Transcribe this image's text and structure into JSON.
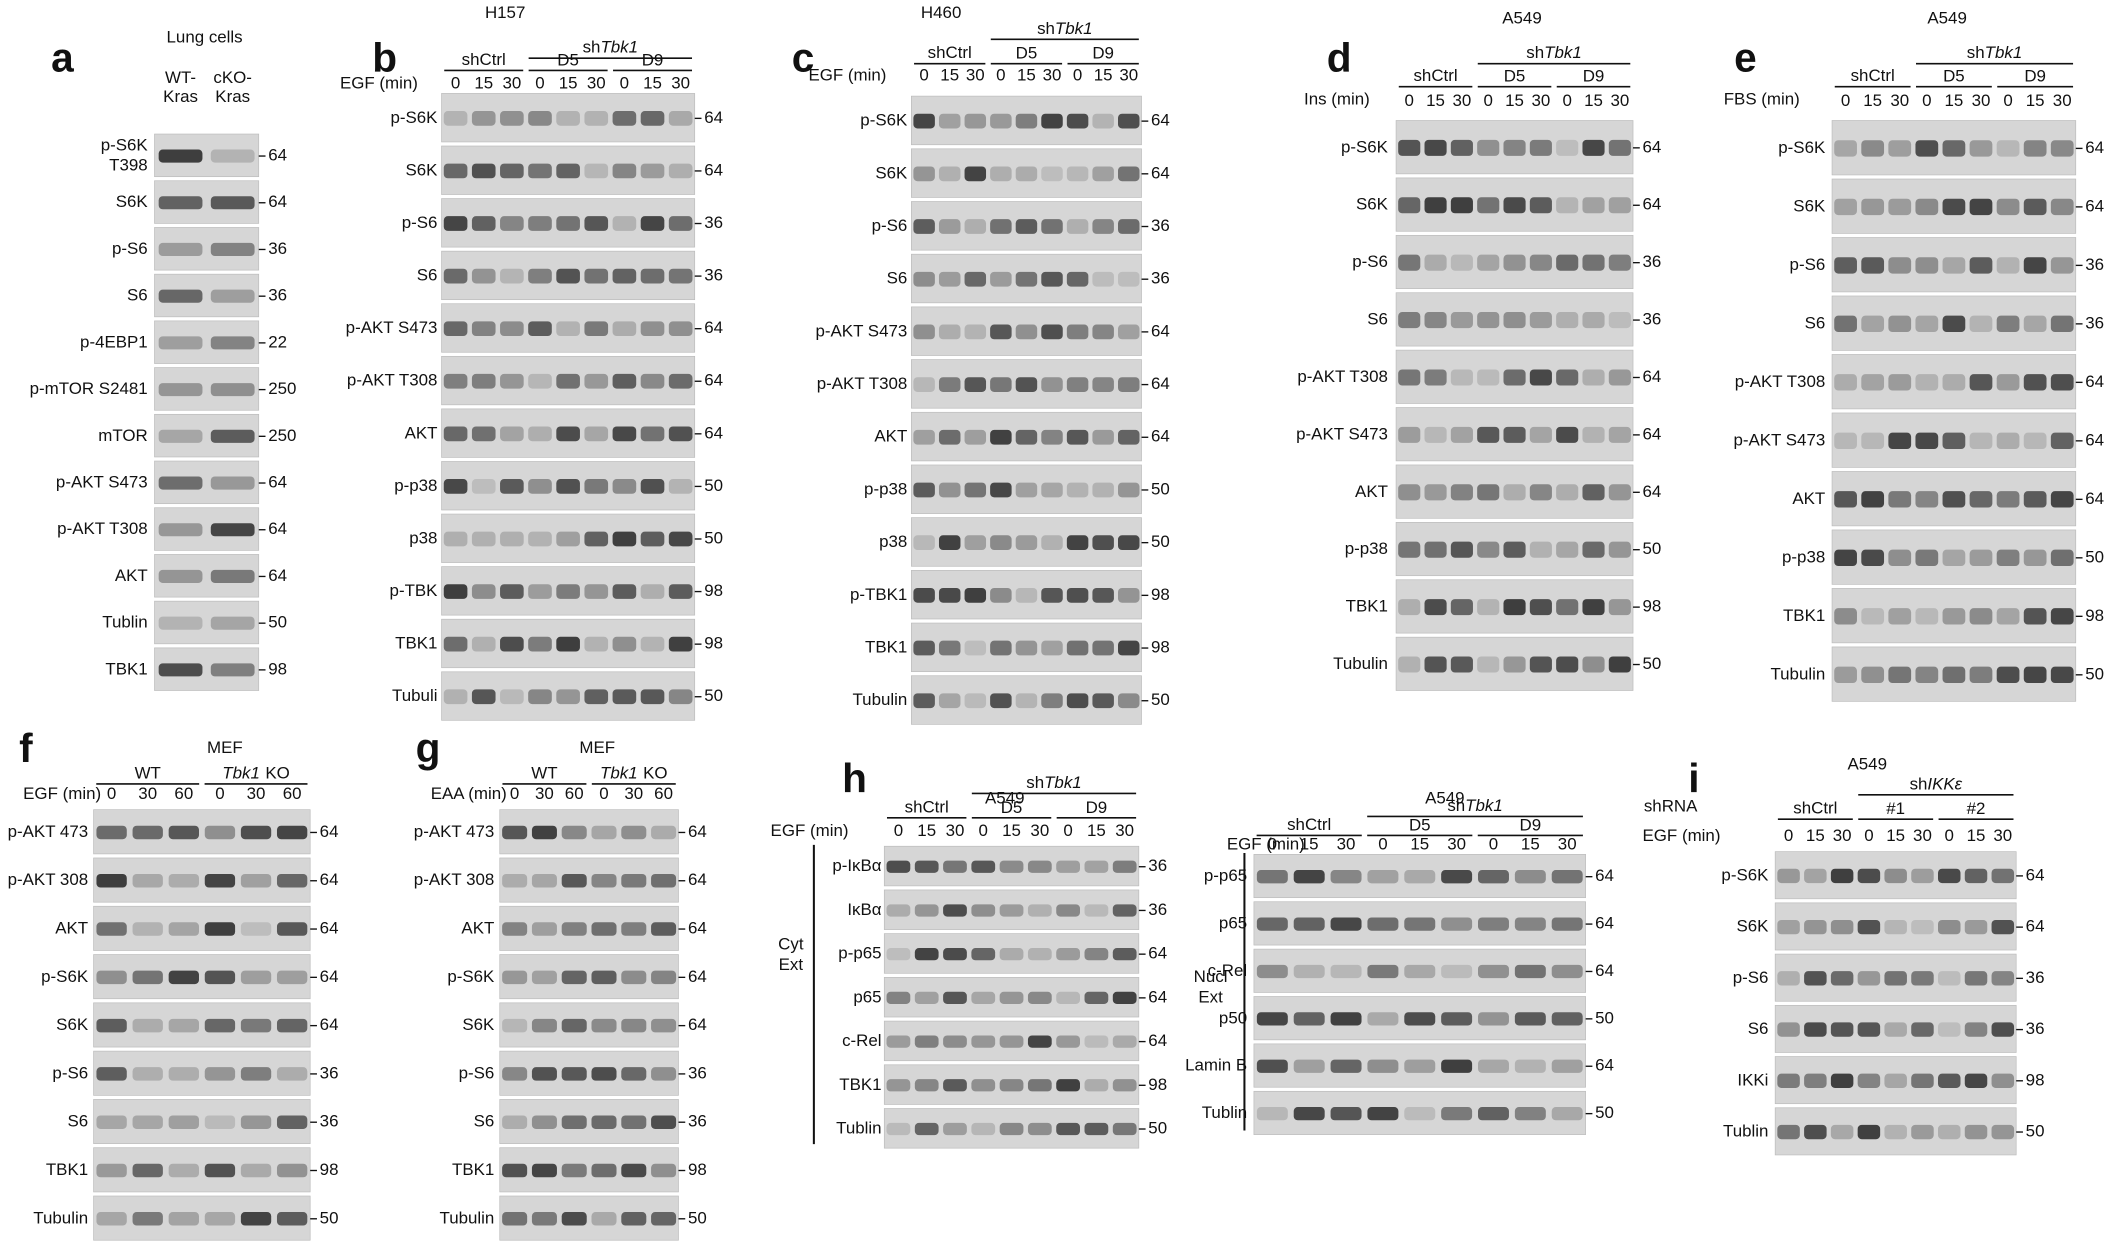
{
  "panels": [
    {
      "letter": "a",
      "title": "Lung cells",
      "columns": [
        [
          "WT-",
          "Kras"
        ],
        [
          "cKO-",
          "Kras"
        ]
      ],
      "blots": [
        {
          "label": [
            "p-S6K",
            "T398"
          ],
          "mw": "64"
        },
        {
          "label": "S6K",
          "mw": "64"
        },
        {
          "label": "p-S6",
          "mw": "36"
        },
        {
          "label": "S6",
          "mw": "36"
        },
        {
          "label": "p-4EBP1",
          "mw": "22"
        },
        {
          "label": "p-mTOR S2481",
          "mw": "250"
        },
        {
          "label": "mTOR",
          "mw": "250"
        },
        {
          "label": "p-AKT S473",
          "mw": "64"
        },
        {
          "label": "p-AKT T308",
          "mw": "64"
        },
        {
          "label": "AKT",
          "mw": "64"
        },
        {
          "label": "Tublin",
          "mw": "50"
        },
        {
          "label": "TBK1",
          "mw": "98"
        }
      ]
    },
    {
      "letter": "b",
      "title": "H157",
      "treatment": "EGF (min)",
      "groups": [
        {
          "text": "shCtrl"
        },
        {
          "prefix": "sh",
          "gene": "Tbk1"
        }
      ],
      "subgroups": [
        "D5",
        "D9"
      ],
      "times": [
        "0",
        "15",
        "30",
        "0",
        "15",
        "30",
        "0",
        "15",
        "30"
      ],
      "blots": [
        {
          "label": "p-S6K",
          "mw": "64"
        },
        {
          "label": "S6K",
          "mw": "64"
        },
        {
          "label": "p-S6",
          "mw": "36"
        },
        {
          "label": "S6",
          "mw": "36"
        },
        {
          "label": "p-AKT S473",
          "mw": "64"
        },
        {
          "label": "p-AKT T308",
          "mw": "64"
        },
        {
          "label": "AKT",
          "mw": "64"
        },
        {
          "label": "p-p38",
          "mw": "50"
        },
        {
          "label": "p38",
          "mw": "50"
        },
        {
          "label": "p-TBK",
          "mw": "98"
        },
        {
          "label": "TBK1",
          "mw": "98"
        },
        {
          "label": "Tubuli",
          "mw": "50"
        }
      ]
    },
    {
      "letter": "c",
      "title": "H460",
      "treatment": "EGF (min)",
      "groups": [
        {
          "text": "shCtrl"
        },
        {
          "prefix": "sh",
          "gene": "Tbk1"
        }
      ],
      "subgroups": [
        "D5",
        "D9"
      ],
      "times": [
        "0",
        "15",
        "30",
        "0",
        "15",
        "30",
        "0",
        "15",
        "30"
      ],
      "blots": [
        {
          "label": "p-S6K",
          "mw": "64"
        },
        {
          "label": "S6K",
          "mw": "64"
        },
        {
          "label": "p-S6",
          "mw": "36"
        },
        {
          "label": "S6",
          "mw": "36"
        },
        {
          "label": "p-AKT S473",
          "mw": "64"
        },
        {
          "label": "p-AKT T308",
          "mw": "64"
        },
        {
          "label": "AKT",
          "mw": "64"
        },
        {
          "label": "p-p38",
          "mw": "50"
        },
        {
          "label": "p38",
          "mw": "50"
        },
        {
          "label": "p-TBK1",
          "mw": "98"
        },
        {
          "label": "TBK1",
          "mw": "98"
        },
        {
          "label": "Tubulin",
          "mw": "50"
        }
      ]
    },
    {
      "letter": "d",
      "title": "A549",
      "treatment": "Ins (min)",
      "groups": [
        {
          "text": "shCtrl"
        },
        {
          "prefix": "sh",
          "gene": "Tbk1"
        }
      ],
      "subgroups": [
        "D5",
        "D9"
      ],
      "times": [
        "0",
        "15",
        "30",
        "0",
        "15",
        "30",
        "0",
        "15",
        "30"
      ],
      "blots": [
        {
          "label": "p-S6K",
          "mw": "64"
        },
        {
          "label": "S6K",
          "mw": "64"
        },
        {
          "label": "p-S6",
          "mw": "36"
        },
        {
          "label": "S6",
          "mw": "36"
        },
        {
          "label": "p-AKT T308",
          "mw": "64"
        },
        {
          "label": "p-AKT S473",
          "mw": "64"
        },
        {
          "label": "AKT",
          "mw": "64"
        },
        {
          "label": "p-p38",
          "mw": "50"
        },
        {
          "label": "TBK1",
          "mw": "98"
        },
        {
          "label": "Tubulin",
          "mw": "50"
        }
      ]
    },
    {
      "letter": "e",
      "title": "A549",
      "treatment": "FBS (min)",
      "groups": [
        {
          "text": "shCtrl"
        },
        {
          "prefix": "sh",
          "gene": "Tbk1"
        }
      ],
      "subgroups": [
        "D5",
        "D9"
      ],
      "times": [
        "0",
        "15",
        "30",
        "0",
        "15",
        "30",
        "0",
        "15",
        "30"
      ],
      "blots": [
        {
          "label": "p-S6K",
          "mw": "64"
        },
        {
          "label": "S6K",
          "mw": "64"
        },
        {
          "label": "p-S6",
          "mw": "36"
        },
        {
          "label": "S6",
          "mw": "36"
        },
        {
          "label": "p-AKT T308",
          "mw": "64"
        },
        {
          "label": "p-AKT S473",
          "mw": "64"
        },
        {
          "label": "AKT",
          "mw": "64"
        },
        {
          "label": "p-p38",
          "mw": "50"
        },
        {
          "label": "TBK1",
          "mw": "98"
        },
        {
          "label": "Tubulin",
          "mw": "50"
        }
      ]
    },
    {
      "letter": "f",
      "title": "MEF",
      "treatment": "EGF (min)",
      "groups": [
        {
          "text": "WT"
        },
        {
          "gene": "Tbk1",
          "suffix": "KO"
        }
      ],
      "times": [
        "0",
        "30",
        "60",
        "0",
        "30",
        "60"
      ],
      "blots": [
        {
          "label": "p-AKT 473",
          "mw": "64"
        },
        {
          "label": "p-AKT 308",
          "mw": "64"
        },
        {
          "label": "AKT",
          "mw": "64"
        },
        {
          "label": "p-S6K",
          "mw": "64"
        },
        {
          "label": "S6K",
          "mw": "64"
        },
        {
          "label": "p-S6",
          "mw": "36"
        },
        {
          "label": "S6",
          "mw": "36"
        },
        {
          "label": "TBK1",
          "mw": "98"
        },
        {
          "label": "Tubulin",
          "mw": "50"
        }
      ]
    },
    {
      "letter": "g",
      "title": "MEF",
      "treatment": "EAA (min)",
      "groups": [
        {
          "text": "WT"
        },
        {
          "gene": "Tbk1",
          "suffix": "KO"
        }
      ],
      "times": [
        "0",
        "30",
        "60",
        "0",
        "30",
        "60"
      ],
      "blots": [
        {
          "label": "p-AKT 473",
          "mw": "64"
        },
        {
          "label": "p-AKT 308",
          "mw": "64"
        },
        {
          "label": "AKT",
          "mw": "64"
        },
        {
          "label": "p-S6K",
          "mw": "64"
        },
        {
          "label": "S6K",
          "mw": "64"
        },
        {
          "label": "p-S6",
          "mw": "36"
        },
        {
          "label": "S6",
          "mw": "36"
        },
        {
          "label": "TBK1",
          "mw": "98"
        },
        {
          "label": "Tubulin",
          "mw": "50"
        }
      ]
    },
    {
      "letter": "h",
      "title": "A549",
      "treatment": "EGF (min)",
      "side": [
        "Cyt",
        "Ext"
      ],
      "groups": [
        {
          "text": "shCtrl"
        },
        {
          "prefix": "sh",
          "gene": "Tbk1"
        }
      ],
      "subgroups": [
        "D5",
        "D9"
      ],
      "times": [
        "0",
        "15",
        "30",
        "0",
        "15",
        "30",
        "0",
        "15",
        "30"
      ],
      "blots": [
        {
          "label": "p-IκBα",
          "mw": "36"
        },
        {
          "label": "IκBα",
          "mw": "36"
        },
        {
          "label": "p-p65",
          "mw": "64"
        },
        {
          "label": "p65",
          "mw": "64"
        },
        {
          "label": "c-Rel",
          "mw": "64"
        },
        {
          "label": "TBK1",
          "mw": "98"
        },
        {
          "label": "Tublin",
          "mw": "50"
        }
      ]
    },
    {
      "title": "A549",
      "treatment": "EGF (min)",
      "side": [
        "Nucl",
        "Ext"
      ],
      "groups": [
        {
          "text": "shCtrl"
        },
        {
          "prefix": "sh",
          "gene": "Tbk1"
        }
      ],
      "subgroups": [
        "D5",
        "D9"
      ],
      "times": [
        "0",
        "15",
        "30",
        "0",
        "15",
        "30",
        "0",
        "15",
        "30"
      ],
      "blots": [
        {
          "label": "p-p65",
          "mw": "64"
        },
        {
          "label": "p65",
          "mw": "64"
        },
        {
          "label": "c-Rel",
          "mw": "64"
        },
        {
          "label": "p50",
          "mw": "50"
        },
        {
          "label": "Lamin B",
          "mw": "64"
        },
        {
          "label": "Tublin",
          "mw": "50"
        }
      ]
    },
    {
      "letter": "i",
      "title": "A549",
      "selector": "shRNA",
      "treatment": "EGF (min)",
      "groups": [
        {
          "text": "shCtrl"
        },
        {
          "prefix": "sh",
          "gene": "IKKε"
        }
      ],
      "subgroups": [
        "#1",
        "#2"
      ],
      "times": [
        "0",
        "15",
        "30",
        "0",
        "15",
        "30",
        "0",
        "15",
        "30"
      ],
      "blots": [
        {
          "label": "p-S6K",
          "mw": "64"
        },
        {
          "label": "S6K",
          "mw": "64"
        },
        {
          "label": "p-S6",
          "mw": "36"
        },
        {
          "label": "S6",
          "mw": "36"
        },
        {
          "label": "IKKi",
          "mw": "98"
        },
        {
          "label": "Tublin",
          "mw": "50"
        }
      ]
    }
  ]
}
